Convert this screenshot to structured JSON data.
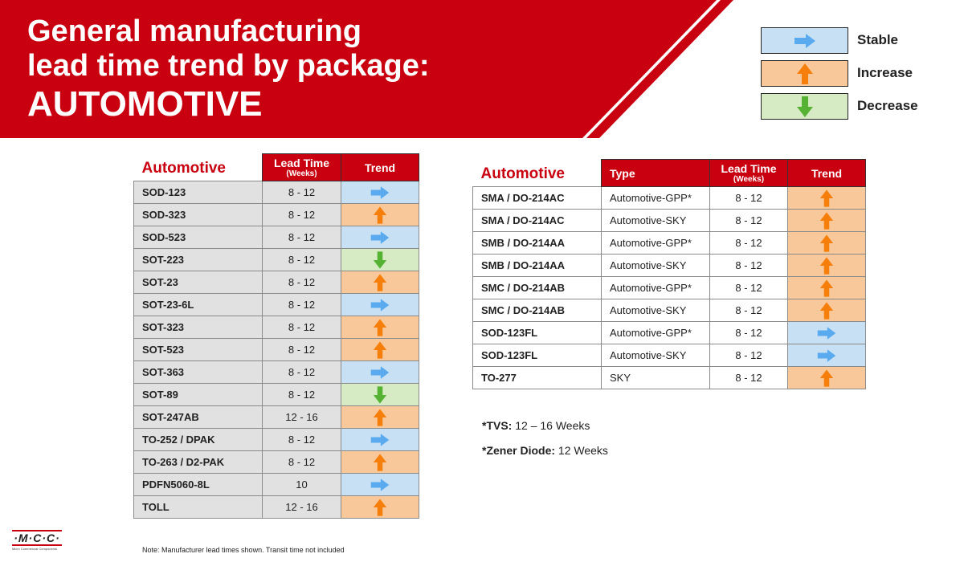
{
  "header": {
    "title_line1": "General manufacturing",
    "title_line2": "lead time trend by package:",
    "title_line3": "AUTOMOTIVE"
  },
  "colors": {
    "brand_red": "#c8000f",
    "stable": "#c7e0f3",
    "increase": "#f9c89a",
    "decrease": "#d6ebc3",
    "arrow_stable": "#5aaaf0",
    "arrow_increase": "#f57f0a",
    "arrow_decrease": "#55b233"
  },
  "legend": [
    {
      "label": "Stable",
      "trend": "stable",
      "icon": "arrow-right-icon"
    },
    {
      "label": "Increase",
      "trend": "increase",
      "icon": "arrow-up-icon"
    },
    {
      "label": "Decrease",
      "trend": "decrease",
      "icon": "arrow-down-icon"
    }
  ],
  "table_left": {
    "caption": "Automotive",
    "col_lead": "Lead Time",
    "col_lead_sub": "(Weeks)",
    "col_trend": "Trend",
    "rows": [
      {
        "package": "SOD-123",
        "lead": "8 - 12",
        "trend": "stable"
      },
      {
        "package": "SOD-323",
        "lead": "8 - 12",
        "trend": "increase"
      },
      {
        "package": "SOD-523",
        "lead": "8 - 12",
        "trend": "stable"
      },
      {
        "package": "SOT-223",
        "lead": "8 - 12",
        "trend": "decrease"
      },
      {
        "package": "SOT-23",
        "lead": "8 - 12",
        "trend": "increase"
      },
      {
        "package": "SOT-23-6L",
        "lead": "8 - 12",
        "trend": "stable"
      },
      {
        "package": "SOT-323",
        "lead": "8 - 12",
        "trend": "increase"
      },
      {
        "package": "SOT-523",
        "lead": "8 - 12",
        "trend": "increase"
      },
      {
        "package": "SOT-363",
        "lead": "8 - 12",
        "trend": "stable"
      },
      {
        "package": "SOT-89",
        "lead": "8 - 12",
        "trend": "decrease"
      },
      {
        "package": "SOT-247AB",
        "lead": "12 - 16",
        "trend": "increase"
      },
      {
        "package": "TO-252 / DPAK",
        "lead": "8 - 12",
        "trend": "stable"
      },
      {
        "package": "TO-263 / D2-PAK",
        "lead": "8 - 12",
        "trend": "increase"
      },
      {
        "package": "PDFN5060-8L",
        "lead": "10",
        "trend": "stable"
      },
      {
        "package": "TOLL",
        "lead": "12 - 16",
        "trend": "increase"
      }
    ]
  },
  "table_right": {
    "caption": "Automotive",
    "col_type": "Type",
    "col_lead": "Lead Time",
    "col_lead_sub": "(Weeks)",
    "col_trend": "Trend",
    "rows": [
      {
        "package": "SMA / DO-214AC",
        "type": "Automotive-GPP*",
        "lead": "8 - 12",
        "trend": "increase"
      },
      {
        "package": "SMA / DO-214AC",
        "type": "Automotive-SKY",
        "lead": "8 - 12",
        "trend": "increase"
      },
      {
        "package": "SMB / DO-214AA",
        "type": "Automotive-GPP*",
        "lead": "8 - 12",
        "trend": "increase"
      },
      {
        "package": "SMB / DO-214AA",
        "type": "Automotive-SKY",
        "lead": "8 - 12",
        "trend": "increase"
      },
      {
        "package": "SMC / DO-214AB",
        "type": "Automotive-GPP*",
        "lead": "8 - 12",
        "trend": "increase"
      },
      {
        "package": "SMC / DO-214AB",
        "type": "Automotive-SKY",
        "lead": "8 - 12",
        "trend": "increase"
      },
      {
        "package": "SOD-123FL",
        "type": "Automotive-GPP*",
        "lead": "8 - 12",
        "trend": "stable"
      },
      {
        "package": "SOD-123FL",
        "type": "Automotive-SKY",
        "lead": "8 - 12",
        "trend": "stable"
      },
      {
        "package": "TO-277",
        "type": "SKY",
        "lead": "8 - 12",
        "trend": "increase"
      }
    ]
  },
  "notes": {
    "tvs_label": "*TVS:",
    "tvs_value": " 12 – 16 Weeks",
    "zener_label": "*Zener Diode:",
    "zener_value": " 12 Weeks"
  },
  "footnote": "Note: Manufacturer lead times shown. Transit time not included",
  "logo": {
    "text": "·M·C·C·",
    "subtext": "Micro Commercial Components"
  }
}
